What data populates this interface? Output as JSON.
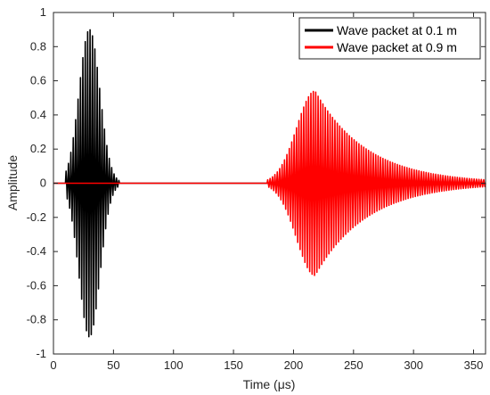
{
  "chart_data": {
    "type": "line",
    "title": "",
    "xlabel": "Time (μs)",
    "ylabel": "Amplitude",
    "xlim": [
      0,
      360
    ],
    "ylim": [
      -1,
      1
    ],
    "xticks": [
      0,
      50,
      100,
      150,
      200,
      250,
      300,
      350
    ],
    "yticks": [
      -1,
      -0.8,
      -0.6,
      -0.4,
      -0.2,
      0,
      0.2,
      0.4,
      0.6,
      0.8,
      1
    ],
    "grid": false,
    "legend_position": "top-right",
    "series": [
      {
        "name": "Wave packet at 0.1 m",
        "color": "#000000",
        "envelope": {
          "start": 10,
          "peak_time": 30,
          "peak_amplitude": 0.9,
          "end": 55
        }
      },
      {
        "name": "Wave packet at 0.9 m",
        "color": "#ff0000",
        "envelope": {
          "start": 178,
          "peak_time": 218,
          "peak_amplitude": 0.54,
          "end": 360,
          "amplitude_at_end": 0.02
        }
      }
    ]
  }
}
